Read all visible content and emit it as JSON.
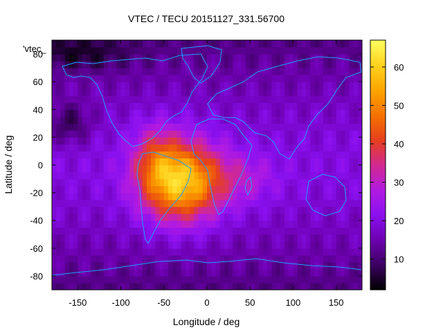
{
  "chart_data": {
    "type": "heatmap",
    "title": "VTEC / TECU 20151127_331.56700",
    "key_label": "'vtec_",
    "xlabel": "Longitude / deg",
    "ylabel": "Latitude / deg",
    "xlim": [
      -180,
      180
    ],
    "ylim": [
      -90,
      90
    ],
    "x_ticks": [
      -150,
      -100,
      -50,
      0,
      50,
      100,
      150
    ],
    "y_ticks": [
      -80,
      -60,
      -40,
      -20,
      0,
      20,
      40,
      60,
      80
    ],
    "colorbar": {
      "range": [
        2,
        67
      ],
      "ticks": [
        10,
        20,
        30,
        40,
        50,
        60
      ],
      "palette": [
        "#000000",
        "#3c0061",
        "#6d00b0",
        "#8a10f0",
        "#b31be0",
        "#d2298f",
        "#e6401c",
        "#f57300",
        "#fca500",
        "#ffd21e",
        "#ffff60"
      ]
    },
    "grid": false,
    "overlay": "coastlines",
    "cell_size_deg": 5,
    "field_description": "TEC crest centred near 10S, 30W peaking about 65 TECU, low values about 5 TECU in high latitudes"
  }
}
